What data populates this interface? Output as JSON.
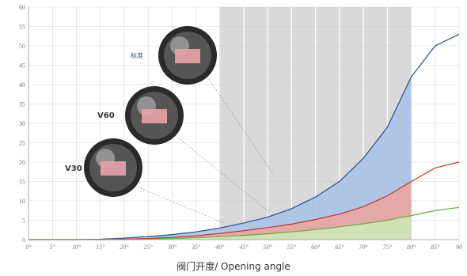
{
  "chart_data": {
    "type": "area",
    "xlabel": "阀门开度/ Opening angle",
    "ylabel": "",
    "x": [
      0,
      5,
      10,
      15,
      20,
      25,
      30,
      35,
      40,
      45,
      50,
      55,
      60,
      65,
      70,
      75,
      80,
      85,
      90
    ],
    "x_tick_labels": [
      "0°",
      "5°",
      "10°",
      "15°",
      "20°",
      "25°",
      "30°",
      "35°",
      "40°",
      "45°",
      "50°",
      "55°",
      "60°",
      "65°",
      "70°",
      "75°",
      "80°",
      "85°",
      "90"
    ],
    "y_ticks": [
      0,
      5,
      10,
      15,
      20,
      25,
      30,
      35,
      40,
      45,
      50,
      55,
      60
    ],
    "xlim": [
      0,
      90
    ],
    "ylim": [
      0,
      60
    ],
    "grid": true,
    "highlight_range": [
      40,
      80
    ],
    "series": [
      {
        "name": "标准",
        "values": [
          0,
          0,
          0,
          0.1,
          0.4,
          0.8,
          1.3,
          2.0,
          3.0,
          4.3,
          5.8,
          8.0,
          11.0,
          15.0,
          21.0,
          29.0,
          42.0,
          50.0,
          53.0
        ],
        "color": "#2b4f8c",
        "fill": "#a9c2e6"
      },
      {
        "name": "V60",
        "values": [
          0,
          0,
          0,
          0,
          0.1,
          0.3,
          0.6,
          1.0,
          1.6,
          2.3,
          3.1,
          4.0,
          5.2,
          6.6,
          8.5,
          11.3,
          15.0,
          18.5,
          20.0
        ],
        "color": "#c0392b",
        "fill": "#e8a5a0"
      },
      {
        "name": "V30",
        "values": [
          0,
          0,
          0,
          0,
          0,
          0.1,
          0.3,
          0.5,
          0.8,
          1.1,
          1.5,
          2.0,
          2.6,
          3.3,
          4.1,
          5.0,
          6.2,
          7.5,
          8.3
        ],
        "color": "#6fa84e",
        "fill": "#cfe6b8"
      }
    ],
    "labels": [
      "标准",
      "V60",
      "V30"
    ]
  },
  "colors": {
    "highlight_band": "#d9d9d9",
    "grid": "#cccccc",
    "axis": "#999999"
  }
}
